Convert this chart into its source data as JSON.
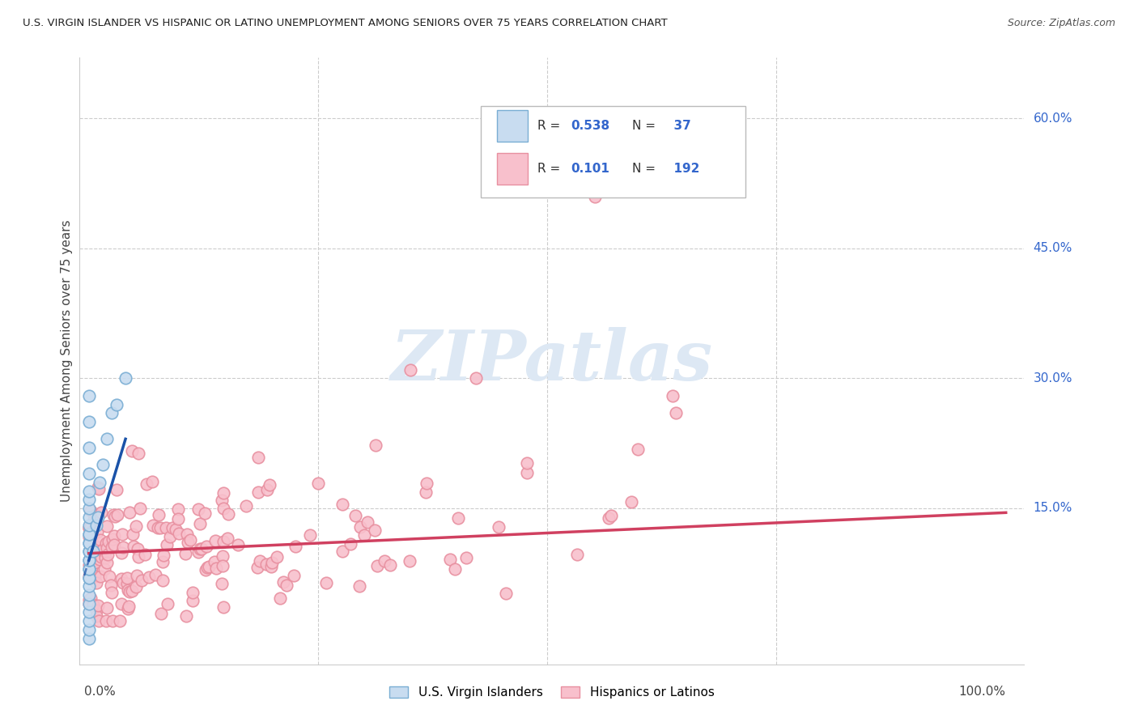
{
  "title": "U.S. VIRGIN ISLANDER VS HISPANIC OR LATINO UNEMPLOYMENT AMONG SENIORS OVER 75 YEARS CORRELATION CHART",
  "source": "Source: ZipAtlas.com",
  "ylabel": "Unemployment Among Seniors over 75 years",
  "R_virgin": 0.538,
  "N_virgin": 37,
  "R_hispanic": 0.101,
  "N_hispanic": 192,
  "color_virgin_face": "#c8dcf0",
  "color_virgin_edge": "#7aaed4",
  "color_hispanic_face": "#f8c0cc",
  "color_hispanic_edge": "#e890a0",
  "color_trendline_virgin": "#1a52a8",
  "color_trendline_hispanic": "#d04060",
  "color_right_labels": "#3366cc",
  "watermark_color": "#dde8f4",
  "grid_color": "#cccccc",
  "ytick_values": [
    0.15,
    0.3,
    0.45,
    0.6
  ],
  "ytick_labels": [
    "15.0%",
    "30.0%",
    "45.0%",
    "60.0%"
  ],
  "xlim": [
    -0.01,
    1.02
  ],
  "ylim": [
    -0.03,
    0.67
  ]
}
